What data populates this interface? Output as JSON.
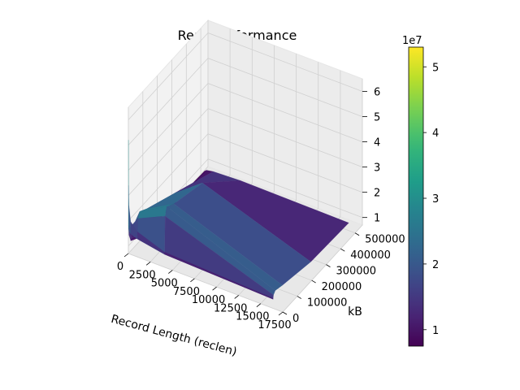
{
  "chart_data": {
    "type": "surface",
    "title": "Read Performance",
    "xlabel": "Record Length (reclen)",
    "ylabel": "kB",
    "zlabel": "",
    "colormap": "viridis",
    "x": [
      4,
      16,
      64,
      256,
      1024,
      4096,
      16384
    ],
    "y": [
      64,
      1024,
      4096,
      16384,
      65536,
      262144,
      524288
    ],
    "z": [
      [
        52000000,
        34000000,
        26000000,
        20000000,
        17000000,
        13000000,
        11000000
      ],
      [
        18000000,
        17000000,
        16000000,
        15000000,
        14000000,
        12000000,
        10500000
      ],
      [
        14000000,
        15000000,
        16000000,
        18000000,
        22000000,
        27000000,
        12000000
      ],
      [
        11000000,
        12000000,
        14000000,
        17000000,
        24000000,
        30000000,
        13000000
      ],
      [
        9000000,
        10000000,
        12000000,
        16000000,
        22000000,
        28000000,
        12000000
      ],
      [
        7000000,
        7500000,
        8000000,
        9000000,
        16000000,
        24000000,
        9000000
      ],
      [
        6000000,
        6500000,
        7000000,
        7500000,
        8000000,
        8500000,
        8000000
      ]
    ],
    "xlim": [
      0,
      17500
    ],
    "ylim": [
      0,
      550000
    ],
    "zlim": [
      7000000,
      65000000
    ],
    "x_ticks": [
      "0",
      "2500",
      "5000",
      "7500",
      "10000",
      "12500",
      "15000",
      "17500"
    ],
    "y_ticks": [
      "0",
      "100000",
      "200000",
      "300000",
      "400000",
      "500000"
    ],
    "z_ticks": [
      "1",
      "2",
      "3",
      "4",
      "5",
      "6"
    ],
    "z_scale_label": "1e7",
    "colorbar": {
      "ticks": [
        "1",
        "2",
        "3",
        "4",
        "5"
      ],
      "scale_label": "1e7",
      "range": [
        7500000,
        53000000
      ]
    },
    "grid": true
  }
}
